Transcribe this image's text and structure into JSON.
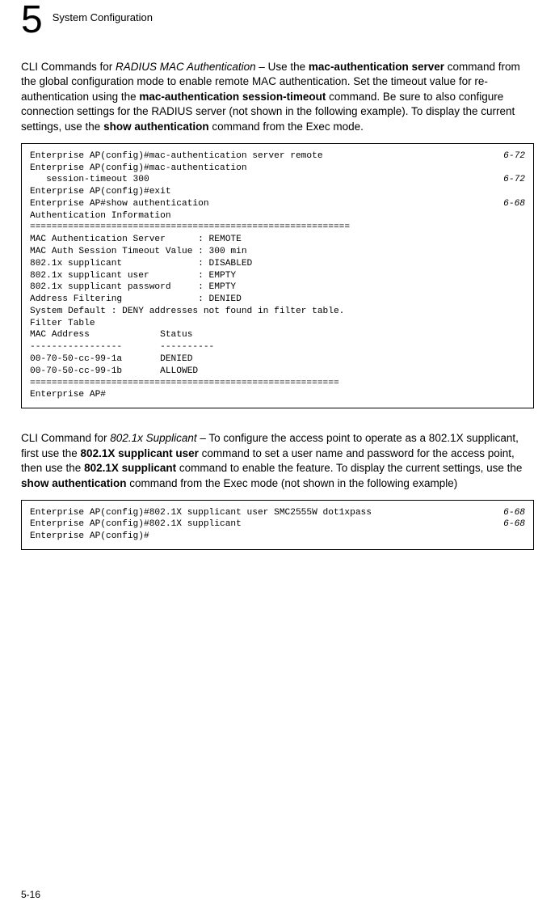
{
  "header": {
    "chapter_number": "5",
    "chapter_title": "System Configuration"
  },
  "para1": {
    "prefix": "CLI Commands for ",
    "italic1": "RADIUS MAC Authentication",
    "mid1": " – Use the ",
    "bold1": "mac-authentication server",
    "mid2": " command from the global configuration mode to enable remote MAC authentication. Set the timeout value for re-authentication using the ",
    "bold2": "mac-authentication session-timeout",
    "mid3": " command. Be sure to also configure connection settings for the RADIUS server (not shown in the following example). To display the current settings, use the ",
    "bold3": "show authentication",
    "tail": " command from the Exec  mode."
  },
  "code1": {
    "l1": "Enterprise AP(config)#mac-authentication server remote",
    "r1": "6-72",
    "l2": "Enterprise AP(config)#mac-authentication",
    "l3": "   session-timeout 300",
    "r3": "6-72",
    "l4": "Enterprise AP(config)#exit",
    "l5": "Enterprise AP#show authentication",
    "r5": "6-68",
    "l6": "",
    "l7": "Authentication Information",
    "l8": "===========================================================",
    "l9": "MAC Authentication Server      : REMOTE",
    "l10": "MAC Auth Session Timeout Value : 300 min",
    "l11": "802.1x supplicant              : DISABLED",
    "l12": "802.1x supplicant user         : EMPTY",
    "l13": "802.1x supplicant password     : EMPTY",
    "l14": "Address Filtering              : DENIED",
    "l15": "",
    "l16": "System Default : DENY addresses not found in filter table.",
    "l17": "Filter Table",
    "l18": "",
    "l19": "MAC Address             Status",
    "l20": "-----------------       ----------",
    "l21": "00-70-50-cc-99-1a       DENIED",
    "l22": "00-70-50-cc-99-1b       ALLOWED",
    "l23": "=========================================================",
    "l24": "Enterprise AP#"
  },
  "para2": {
    "prefix": "CLI Command for ",
    "italic1": "802.1x Supplicant",
    "mid1": " – To configure the access point to operate as a 802.1X supplicant, first use the ",
    "bold1": "802.1X supplicant user",
    "mid2": " command to set a user name and password for the access point, then use the ",
    "bold2": "802.1X supplicant",
    "mid3": " command to enable the feature. To display the current settings, use the ",
    "bold3": "show authentication",
    "tail": " command from the Exec mode (not shown in the following example)"
  },
  "code2": {
    "l1": "Enterprise AP(config)#802.1X supplicant user SMC2555W dot1xpass",
    "r1": "6-68",
    "l2": "Enterprise AP(config)#802.1X supplicant",
    "r2": "6-68",
    "l3": "Enterprise AP(config)#"
  },
  "footer": {
    "page_num": "5-16"
  }
}
